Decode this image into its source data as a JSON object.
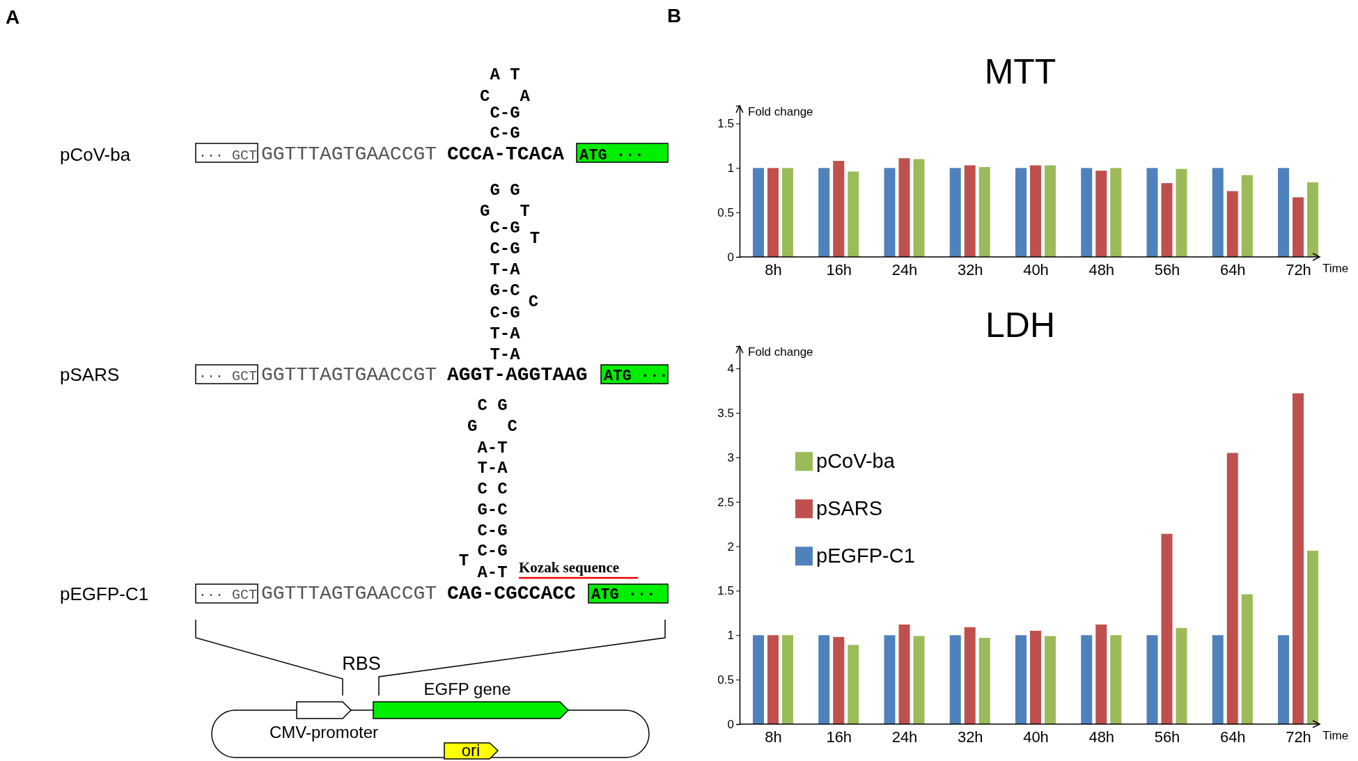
{
  "chart_data": [
    {
      "type": "other",
      "title": "A",
      "annotations": [
        "pCoV-ba",
        "pSARS",
        "pEGFP-C1",
        "··· GCT",
        "GGTTTAGTGAACCGT",
        "CCCA-TCACA",
        "ATG ···",
        "A T",
        "C   A",
        "C-G",
        "C-G",
        "··· GCT",
        "GGTTTAGTGAACCGT",
        "AGGT-AGGTAAG",
        "ATG ···",
        "G G",
        "G   T",
        "C-G",
        "T",
        "C-G",
        "T-A",
        "G-C",
        "C",
        "C-G",
        "T-A",
        "T-A",
        "··· GCT",
        "GGTTTAGTGAACCGT",
        "CAG-CGCCACC",
        "ATG ···",
        "C G",
        "G   C",
        "A-T",
        "T-A",
        "C C",
        "G-C",
        "C-G",
        "C-G",
        "T",
        "A-T",
        "Kozak sequence",
        "RBS",
        "EGFP gene",
        "CMV-promoter",
        "ori"
      ]
    },
    {
      "type": "bar",
      "title": "MTT",
      "ylabel": "Fold change",
      "xlabel": "Time",
      "annotations": [
        "B"
      ],
      "categories": [
        "8h",
        "16h",
        "24h",
        "32h",
        "40h",
        "48h",
        "56h",
        "64h",
        "72h"
      ],
      "ylim": [
        0,
        1.7
      ],
      "yticks": [
        0,
        0.5,
        1,
        1.5
      ],
      "legend": false,
      "series": [
        {
          "color": "#4f81bd",
          "values": [
            1,
            1,
            1,
            1,
            1,
            1,
            1,
            1,
            1
          ]
        },
        {
          "color": "#c0504d",
          "values": [
            1,
            1.08,
            1.11,
            1.03,
            1.03,
            0.97,
            0.83,
            0.74,
            0.67
          ]
        },
        {
          "color": "#9bbb59",
          "values": [
            1,
            0.96,
            1.1,
            1.01,
            1.03,
            1,
            0.99,
            0.92,
            0.84
          ]
        }
      ]
    },
    {
      "type": "bar",
      "title": "LDH",
      "ylabel": "Fold change",
      "xlabel": "Time",
      "categories": [
        "8h",
        "16h",
        "24h",
        "32h",
        "40h",
        "48h",
        "56h",
        "64h",
        "72h"
      ],
      "ylim": [
        0,
        4.25
      ],
      "yticks": [
        0,
        0.5,
        1,
        1.5,
        2,
        2.5,
        3,
        3.5,
        4
      ],
      "legend": "top left",
      "series": [
        {
          "name": "pEGFP-C1",
          "color": "#4f81bd",
          "values": [
            1,
            1,
            1,
            1,
            1,
            1,
            1,
            1,
            1
          ]
        },
        {
          "name": "pSARS",
          "color": "#c0504d",
          "values": [
            1,
            0.98,
            1.12,
            1.09,
            1.05,
            1.12,
            2.14,
            3.05,
            3.72
          ]
        },
        {
          "name": "pCoV-ba",
          "color": "#9bbb59",
          "values": [
            1,
            0.89,
            0.99,
            0.97,
            0.99,
            1,
            1.08,
            1.46,
            1.95
          ]
        }
      ]
    }
  ]
}
